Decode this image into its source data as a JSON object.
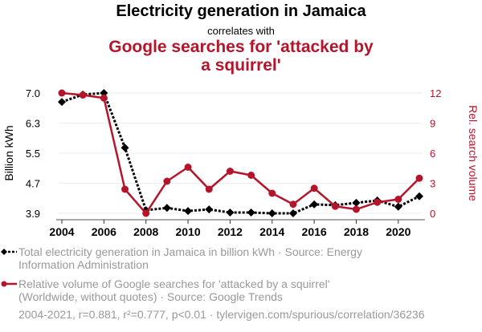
{
  "header": {
    "title": "Electricity generation in Jamaica",
    "subtitle": "correlates with",
    "title2": "Google searches for 'attacked by a squirrel'"
  },
  "legend": {
    "series1": "Total electricity generation in Jamaica in billion kWh · Source: Energy Information Administration",
    "series2": "Relative volume of Google searches for 'attacked by a squirrel' (Worldwide, without quotes) · Source: Google Trends",
    "footer": "2004-2021, r=0.881, r²=0.777, p<0.01 · tylervigen.com/spurious/correlation/36236"
  },
  "colors": {
    "series1": "#000000",
    "series2": "#b5152b",
    "grid": "#eeeeee",
    "muted": "#999999"
  },
  "chart_data": {
    "type": "line",
    "title": "Electricity generation in Jamaica correlates with Google searches for 'attacked by a squirrel'",
    "x": [
      2004,
      2005,
      2006,
      2007,
      2008,
      2009,
      2010,
      2011,
      2012,
      2013,
      2014,
      2015,
      2016,
      2017,
      2018,
      2019,
      2020,
      2021
    ],
    "xticks": [
      2004,
      2006,
      2008,
      2010,
      2012,
      2014,
      2016,
      2018,
      2020
    ],
    "ylabel": "Billion kWh",
    "y2label": "Rel. search volume",
    "ylim": [
      3.9,
      7.0
    ],
    "yticks": [
      "3.9",
      "4.7",
      "5.5",
      "6.3",
      "7.0"
    ],
    "y2lim": [
      0,
      12
    ],
    "y2ticks": [
      "0",
      "3",
      "6",
      "9",
      "12"
    ],
    "grid": true,
    "series": [
      {
        "name": "Total electricity generation in Jamaica (billion kWh)",
        "axis": "left",
        "marker": "diamond",
        "style": "dotted",
        "values": [
          6.77,
          6.96,
          7.0,
          5.59,
          3.98,
          4.04,
          3.96,
          4.0,
          3.92,
          3.92,
          3.9,
          3.9,
          4.13,
          4.11,
          4.17,
          4.23,
          4.07,
          4.34
        ]
      },
      {
        "name": "Relative volume of Google searches for 'attacked by a squirrel'",
        "axis": "right",
        "marker": "circle",
        "style": "solid",
        "values": [
          12,
          11.8,
          11.5,
          2.4,
          0,
          3.2,
          4.6,
          2.4,
          4.2,
          3.8,
          2.0,
          0.9,
          2.5,
          0.7,
          0.4,
          1.1,
          1.4,
          3.5
        ]
      }
    ]
  }
}
